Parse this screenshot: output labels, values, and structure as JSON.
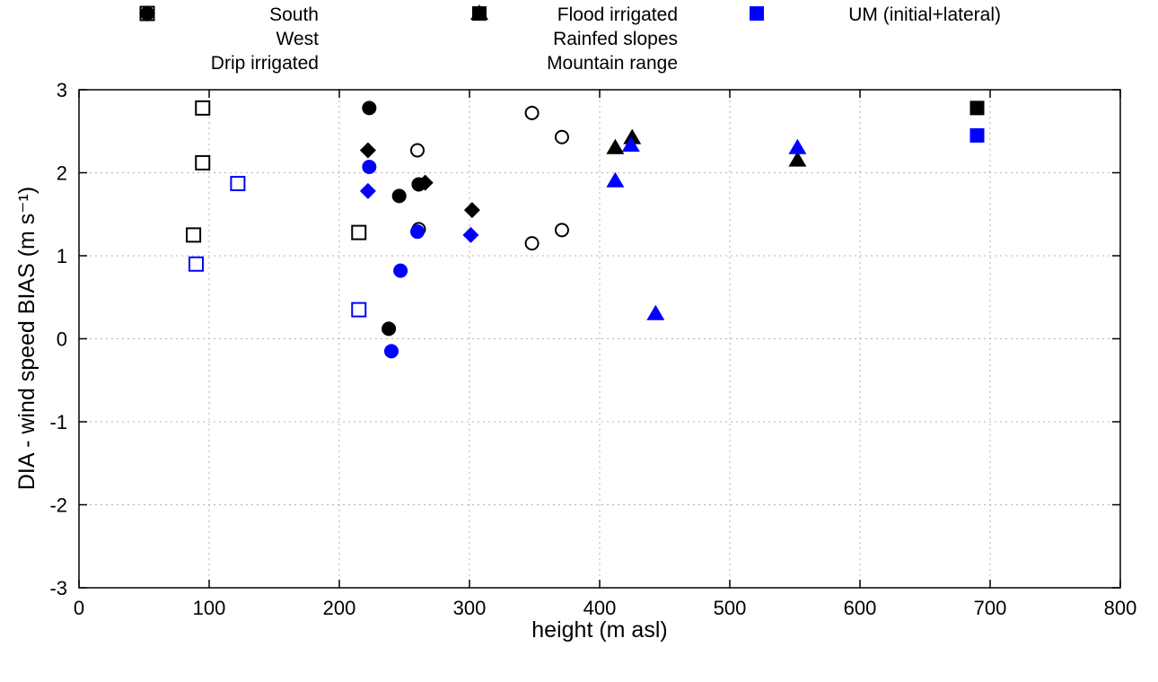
{
  "chart_data": {
    "type": "scatter",
    "title": "",
    "xlabel": "height (m asl)",
    "ylabel": "DIA - wind speed BIAS (m s⁻¹)",
    "xlim": [
      0,
      800
    ],
    "ylim": [
      -3,
      3
    ],
    "xticks": [
      0,
      100,
      200,
      300,
      400,
      500,
      600,
      700,
      800
    ],
    "yticks": [
      -3,
      -2,
      -1,
      0,
      1,
      2,
      3
    ],
    "grid": true,
    "colors": {
      "black": "#000000",
      "blue": "#0000ff",
      "grid": "#b0b0b0"
    },
    "series": [
      {
        "name": "South",
        "marker": "square-open",
        "color": "#000000",
        "points": [
          [
            95,
            2.78
          ],
          [
            95,
            2.12
          ],
          [
            88,
            1.25
          ],
          [
            215,
            1.28
          ]
        ]
      },
      {
        "name": "South UM",
        "marker": "square-open",
        "color": "#0000ff",
        "points": [
          [
            122,
            1.87
          ],
          [
            90,
            0.9
          ],
          [
            215,
            0.35
          ]
        ]
      },
      {
        "name": "West",
        "marker": "circle-open",
        "color": "#000000",
        "points": [
          [
            260,
            2.27
          ],
          [
            348,
            2.72
          ],
          [
            371,
            2.43
          ],
          [
            261,
            1.32
          ],
          [
            348,
            1.15
          ],
          [
            371,
            1.31
          ]
        ]
      },
      {
        "name": "Drip irrigated",
        "marker": "diamond",
        "color": "#000000",
        "points": [
          [
            222,
            2.27
          ],
          [
            266,
            1.88
          ],
          [
            302,
            1.55
          ]
        ]
      },
      {
        "name": "Drip irrigated UM",
        "marker": "diamond",
        "color": "#0000ff",
        "points": [
          [
            222,
            1.78
          ],
          [
            301,
            1.25
          ]
        ]
      },
      {
        "name": "Flood irrigated",
        "marker": "circle",
        "color": "#000000",
        "points": [
          [
            223,
            2.78
          ],
          [
            246,
            1.72
          ],
          [
            261,
            1.86
          ],
          [
            238,
            0.12
          ]
        ]
      },
      {
        "name": "Flood irrigated UM",
        "marker": "circle",
        "color": "#0000ff",
        "points": [
          [
            223,
            2.07
          ],
          [
            260,
            1.29
          ],
          [
            247,
            0.82
          ],
          [
            240,
            -0.15
          ]
        ]
      },
      {
        "name": "Rainfed slopes",
        "marker": "triangle",
        "color": "#000000",
        "points": [
          [
            412,
            2.3
          ],
          [
            425,
            2.42
          ],
          [
            552,
            2.15
          ]
        ]
      },
      {
        "name": "Rainfed slopes UM",
        "marker": "triangle",
        "color": "#0000ff",
        "points": [
          [
            424,
            2.33
          ],
          [
            412,
            1.9
          ],
          [
            443,
            0.3
          ],
          [
            552,
            2.3
          ]
        ]
      },
      {
        "name": "Mountain range",
        "marker": "square",
        "color": "#000000",
        "points": [
          [
            690,
            2.78
          ]
        ]
      },
      {
        "name": "Mountain range UM",
        "marker": "square",
        "color": "#0000ff",
        "points": [
          [
            690,
            2.45
          ]
        ]
      }
    ],
    "legend": {
      "position": "top",
      "columns": [
        {
          "items": [
            {
              "label": "South",
              "marker": "square-open",
              "color": "#000000"
            },
            {
              "label": "West",
              "marker": "circle-open",
              "color": "#000000"
            },
            {
              "label": "Drip irrigated",
              "marker": "diamond",
              "color": "#000000"
            }
          ]
        },
        {
          "items": [
            {
              "label": "Flood irrigated",
              "marker": "circle",
              "color": "#000000"
            },
            {
              "label": "Rainfed slopes",
              "marker": "triangle",
              "color": "#000000"
            },
            {
              "label": "Mountain range",
              "marker": "square",
              "color": "#000000"
            }
          ]
        },
        {
          "items": [
            {
              "label": "UM (initial+lateral)",
              "marker": "square",
              "color": "#0000ff"
            }
          ]
        }
      ]
    }
  }
}
